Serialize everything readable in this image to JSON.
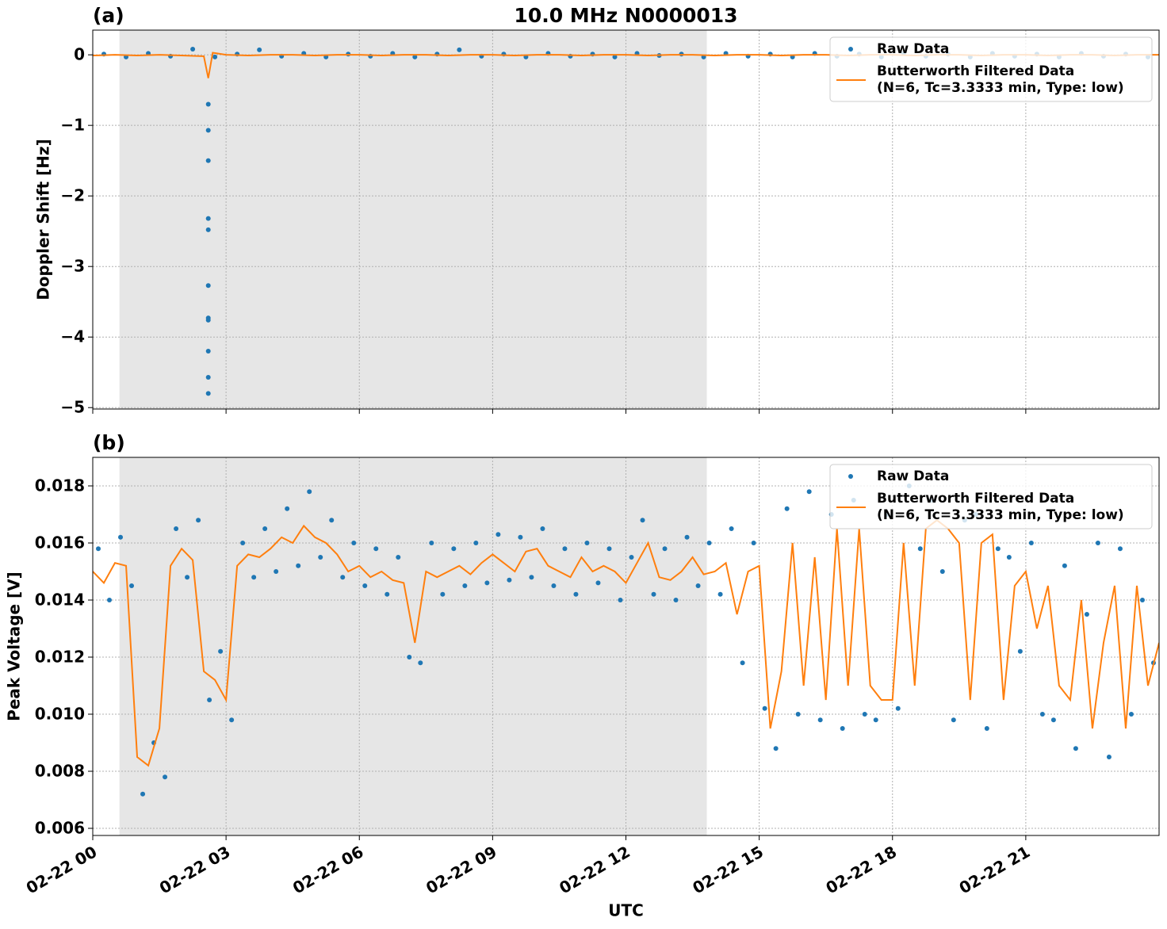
{
  "chart_data": [
    {
      "type": "scatter",
      "panel_label": "(a)",
      "title": "10.0 MHz N0000013",
      "y_label": "Doppler Shift [Hz]",
      "xlim": [
        0,
        24
      ],
      "xticks": [
        0,
        3,
        6,
        9,
        12,
        15,
        18,
        21
      ],
      "ylim": [
        -5.02,
        0.35
      ],
      "yticks": [
        {
          "value": -5,
          "label": "−5"
        },
        {
          "value": -4,
          "label": "−4"
        },
        {
          "value": -3,
          "label": "−3"
        },
        {
          "value": -2,
          "label": "−2"
        },
        {
          "value": -1,
          "label": "−1"
        },
        0
      ],
      "grid": true,
      "legend": "upper right",
      "shaded_span": [
        0.6,
        13.82
      ],
      "shaded_color": "#e6e6e6",
      "series": [
        {
          "name": "Raw Data",
          "kind": "scatter",
          "color": "#1f77b4",
          "x": [
            0.25,
            0.75,
            1.25,
            1.75,
            2.25,
            2.75,
            3.25,
            3.75,
            4.25,
            4.75,
            5.25,
            5.75,
            6.25,
            6.75,
            7.25,
            7.75,
            8.25,
            8.75,
            9.25,
            9.75,
            10.25,
            10.75,
            11.25,
            11.75,
            12.25,
            12.75,
            13.25,
            13.75,
            14.25,
            14.75,
            15.25,
            15.75,
            16.25,
            16.75,
            17.25,
            17.75,
            18.25,
            18.75,
            19.25,
            19.75,
            20.25,
            20.75,
            21.25,
            21.75,
            22.25,
            22.75,
            23.25,
            23.75,
            2.6,
            2.6,
            2.6,
            2.6,
            2.6,
            2.6,
            2.6,
            2.6,
            2.6,
            2.6,
            2.6
          ],
          "values": [
            0.01,
            -0.03,
            0.02,
            -0.02,
            0.08,
            -0.03,
            0.01,
            0.07,
            -0.02,
            0.02,
            -0.03,
            0.01,
            -0.02,
            0.02,
            -0.03,
            0.01,
            0.07,
            -0.02,
            0.01,
            -0.03,
            0.02,
            -0.02,
            0.01,
            -0.03,
            0.02,
            -0.01,
            0.01,
            -0.03,
            0.02,
            -0.02,
            0.01,
            -0.03,
            0.02,
            -0.02,
            0.01,
            -0.03,
            0.02,
            -0.02,
            0.01,
            -0.03,
            0.02,
            -0.02,
            0.01,
            -0.03,
            0.02,
            -0.02,
            0.01,
            -0.03,
            -0.7,
            -1.07,
            -1.5,
            -2.32,
            -2.48,
            -3.27,
            -3.73,
            -3.76,
            -4.2,
            -4.57,
            -4.8
          ]
        },
        {
          "name": "Butterworth Filtered Data\n(N=6, Tc=3.3333 min, Type: low)",
          "kind": "line",
          "color": "#ff7f0e",
          "x": [
            0,
            0.5,
            1,
            1.5,
            2,
            2.5,
            2.6,
            2.7,
            3,
            3.5,
            4,
            4.5,
            5,
            5.5,
            6,
            6.5,
            7,
            7.5,
            8,
            8.5,
            9,
            9.5,
            10,
            10.5,
            11,
            11.5,
            12,
            12.5,
            13,
            13.5,
            14,
            14.5,
            15,
            15.5,
            16,
            16.5,
            17,
            17.5,
            18,
            18.5,
            19,
            19.5,
            20,
            20.5,
            21,
            21.5,
            22,
            22.5,
            23,
            23.5,
            24
          ],
          "values": [
            -0.01,
            0,
            -0.01,
            0,
            -0.01,
            -0.02,
            -0.33,
            0.03,
            0,
            -0.01,
            0,
            0,
            -0.01,
            0,
            0,
            -0.01,
            0,
            0,
            -0.01,
            0,
            0,
            -0.01,
            0,
            0,
            -0.01,
            0,
            0,
            -0.01,
            0,
            0,
            -0.01,
            0,
            0,
            -0.01,
            0,
            0,
            -0.01,
            0,
            0,
            -0.01,
            0,
            0,
            -0.01,
            0,
            0,
            -0.01,
            0,
            0,
            -0.01,
            0,
            0
          ]
        }
      ]
    },
    {
      "type": "scatter",
      "panel_label": "(b)",
      "y_label": "Peak Voltage [V]",
      "x_label": "UTC",
      "xlim": [
        0,
        24
      ],
      "xticks": [
        {
          "value": 0,
          "label": "02-22 00"
        },
        {
          "value": 3,
          "label": "02-22 03"
        },
        {
          "value": 6,
          "label": "02-22 06"
        },
        {
          "value": 9,
          "label": "02-22 09"
        },
        {
          "value": 12,
          "label": "02-22 12"
        },
        {
          "value": 15,
          "label": "02-22 15"
        },
        {
          "value": 18,
          "label": "02-22 18"
        },
        {
          "value": 21,
          "label": "02-22 21"
        }
      ],
      "ylim": [
        0.00575,
        0.019
      ],
      "yticks": [
        0.006,
        0.008,
        {
          "value": 0.01,
          "label": "0.010"
        },
        0.012,
        0.014,
        0.016,
        0.018
      ],
      "grid": true,
      "legend": "upper right",
      "shaded_span": [
        0.6,
        13.82
      ],
      "shaded_color": "#e6e6e6",
      "series": [
        {
          "name": "Raw Data",
          "kind": "scatter",
          "color": "#1f77b4",
          "x": [
            0.125,
            0.375,
            0.625,
            0.875,
            1.125,
            1.375,
            1.625,
            1.875,
            2.125,
            2.375,
            2.625,
            2.875,
            3.125,
            3.375,
            3.625,
            3.875,
            4.125,
            4.375,
            4.625,
            4.875,
            5.125,
            5.375,
            5.625,
            5.875,
            6.125,
            6.375,
            6.625,
            6.875,
            7.125,
            7.375,
            7.625,
            7.875,
            8.125,
            8.375,
            8.625,
            8.875,
            9.125,
            9.375,
            9.625,
            9.875,
            10.125,
            10.375,
            10.625,
            10.875,
            11.125,
            11.375,
            11.625,
            11.875,
            12.125,
            12.375,
            12.625,
            12.875,
            13.125,
            13.375,
            13.625,
            13.875,
            14.125,
            14.375,
            14.625,
            14.875,
            15.125,
            15.375,
            15.625,
            15.875,
            16.125,
            16.375,
            16.625,
            16.875,
            17.125,
            17.375,
            17.625,
            17.875,
            18.125,
            18.375,
            18.625,
            18.875,
            19.125,
            19.375,
            19.625,
            19.875,
            20.125,
            20.375,
            20.625,
            20.875,
            21.125,
            21.375,
            21.625,
            21.875,
            22.125,
            22.375,
            22.625,
            22.875,
            23.125,
            23.375,
            23.625,
            23.875
          ],
          "values": [
            0.0158,
            0.014,
            0.0162,
            0.0145,
            0.0072,
            0.009,
            0.0078,
            0.0165,
            0.0148,
            0.0168,
            0.0105,
            0.0122,
            0.0098,
            0.016,
            0.0148,
            0.0165,
            0.015,
            0.0172,
            0.0152,
            0.0178,
            0.0155,
            0.0168,
            0.0148,
            0.016,
            0.0145,
            0.0158,
            0.0142,
            0.0155,
            0.012,
            0.0118,
            0.016,
            0.0142,
            0.0158,
            0.0145,
            0.016,
            0.0146,
            0.0163,
            0.0147,
            0.0162,
            0.0148,
            0.0165,
            0.0145,
            0.0158,
            0.0142,
            0.016,
            0.0146,
            0.0158,
            0.014,
            0.0155,
            0.0168,
            0.0142,
            0.0158,
            0.014,
            0.0162,
            0.0145,
            0.016,
            0.0142,
            0.0165,
            0.0118,
            0.016,
            0.0102,
            0.0088,
            0.0172,
            0.01,
            0.0178,
            0.0098,
            0.017,
            0.0095,
            0.0175,
            0.01,
            0.0098,
            0.017,
            0.0102,
            0.018,
            0.0158,
            0.0175,
            0.015,
            0.0098,
            0.0168,
            0.017,
            0.0095,
            0.0158,
            0.0155,
            0.0122,
            0.016,
            0.01,
            0.0098,
            0.0152,
            0.0088,
            0.0135,
            0.016,
            0.0085,
            0.0158,
            0.01,
            0.014,
            0.0118
          ]
        },
        {
          "name": "Butterworth Filtered Data\n(N=6, Tc=3.3333 min, Type: low)",
          "kind": "line",
          "color": "#ff7f0e",
          "x": [
            0,
            0.25,
            0.5,
            0.75,
            1,
            1.25,
            1.5,
            1.75,
            2,
            2.25,
            2.5,
            2.75,
            3,
            3.25,
            3.5,
            3.75,
            4,
            4.25,
            4.5,
            4.75,
            5,
            5.25,
            5.5,
            5.75,
            6,
            6.25,
            6.5,
            6.75,
            7,
            7.25,
            7.5,
            7.75,
            8,
            8.25,
            8.5,
            8.75,
            9,
            9.25,
            9.5,
            9.75,
            10,
            10.25,
            10.5,
            10.75,
            11,
            11.25,
            11.5,
            11.75,
            12,
            12.25,
            12.5,
            12.75,
            13,
            13.25,
            13.5,
            13.75,
            14,
            14.25,
            14.5,
            14.75,
            15,
            15.25,
            15.5,
            15.75,
            16,
            16.25,
            16.5,
            16.75,
            17,
            17.25,
            17.5,
            17.75,
            18,
            18.25,
            18.5,
            18.75,
            19,
            19.25,
            19.5,
            19.75,
            20,
            20.25,
            20.5,
            20.75,
            21,
            21.25,
            21.5,
            21.75,
            22,
            22.25,
            22.5,
            22.75,
            23,
            23.25,
            23.5,
            23.75,
            24
          ],
          "values": [
            0.015,
            0.0146,
            0.0153,
            0.0152,
            0.0085,
            0.0082,
            0.0095,
            0.0152,
            0.0158,
            0.0154,
            0.0115,
            0.0112,
            0.0105,
            0.0152,
            0.0156,
            0.0155,
            0.0158,
            0.0162,
            0.016,
            0.0166,
            0.0162,
            0.016,
            0.0156,
            0.015,
            0.0152,
            0.0148,
            0.015,
            0.0147,
            0.0146,
            0.0125,
            0.015,
            0.0148,
            0.015,
            0.0152,
            0.0149,
            0.0153,
            0.0156,
            0.0153,
            0.015,
            0.0157,
            0.0158,
            0.0152,
            0.015,
            0.0148,
            0.0155,
            0.015,
            0.0152,
            0.015,
            0.0146,
            0.0153,
            0.016,
            0.0148,
            0.0147,
            0.015,
            0.0155,
            0.0149,
            0.015,
            0.0153,
            0.0135,
            0.015,
            0.0152,
            0.0095,
            0.0115,
            0.016,
            0.011,
            0.0155,
            0.0105,
            0.0165,
            0.011,
            0.0165,
            0.011,
            0.0105,
            0.0105,
            0.016,
            0.011,
            0.0165,
            0.0168,
            0.0165,
            0.016,
            0.0105,
            0.016,
            0.0163,
            0.0105,
            0.0145,
            0.015,
            0.013,
            0.0145,
            0.011,
            0.0105,
            0.014,
            0.0095,
            0.0125,
            0.0145,
            0.0095,
            0.0145,
            0.011,
            0.0125
          ]
        }
      ]
    }
  ]
}
